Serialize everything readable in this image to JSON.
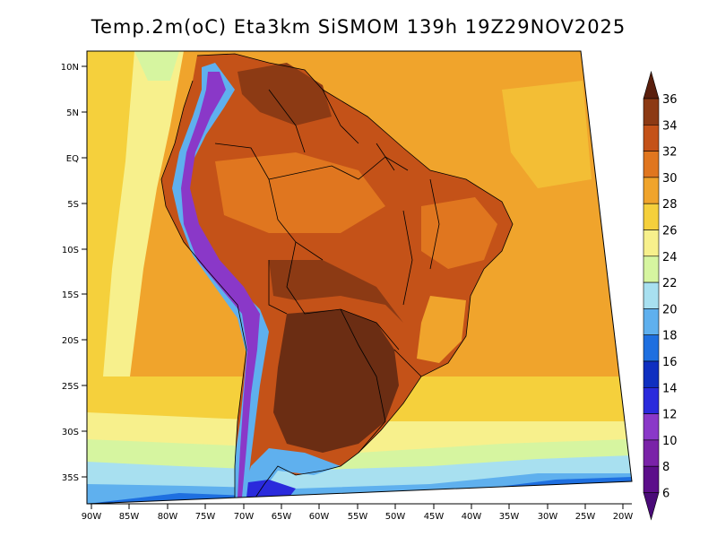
{
  "title": "Temp.2m(oC) Eta3km SiSMOM 139h 19Z29NOV2025",
  "map": {
    "variable": "2m temperature (oC)",
    "lat_labels": [
      "10N",
      "5N",
      "EQ",
      "5S",
      "10S",
      "15S",
      "20S",
      "25S",
      "30S",
      "35S"
    ],
    "lon_labels": [
      "90W",
      "85W",
      "80W",
      "75W",
      "70W",
      "65W",
      "60W",
      "55W",
      "50W",
      "45W",
      "40W",
      "35W",
      "30W",
      "25W",
      "20W"
    ]
  },
  "colorbar": {
    "levels": [
      {
        "label": "36",
        "color": "#6b2d13"
      },
      {
        "label": "34",
        "color": "#8c3a14"
      },
      {
        "label": "32",
        "color": "#c45218"
      },
      {
        "label": "30",
        "color": "#e0761f"
      },
      {
        "label": "28",
        "color": "#f0a42c"
      },
      {
        "label": "26",
        "color": "#f5d03c"
      },
      {
        "label": "24",
        "color": "#f7f08c"
      },
      {
        "label": "22",
        "color": "#d6f5a0"
      },
      {
        "label": "20",
        "color": "#a8e0f0"
      },
      {
        "label": "18",
        "color": "#5fb0ee"
      },
      {
        "label": "16",
        "color": "#1e6fe0"
      },
      {
        "label": "14",
        "color": "#0f2fc0"
      },
      {
        "label": "12",
        "color": "#2a2adc"
      },
      {
        "label": "10",
        "color": "#8a38c8"
      },
      {
        "label": "8",
        "color": "#7a22a8"
      },
      {
        "label": "6",
        "color": "#5c0e8a"
      }
    ],
    "top_arrow_color": "#5a1f0d",
    "bottom_arrow_color": "#4a0a78"
  }
}
